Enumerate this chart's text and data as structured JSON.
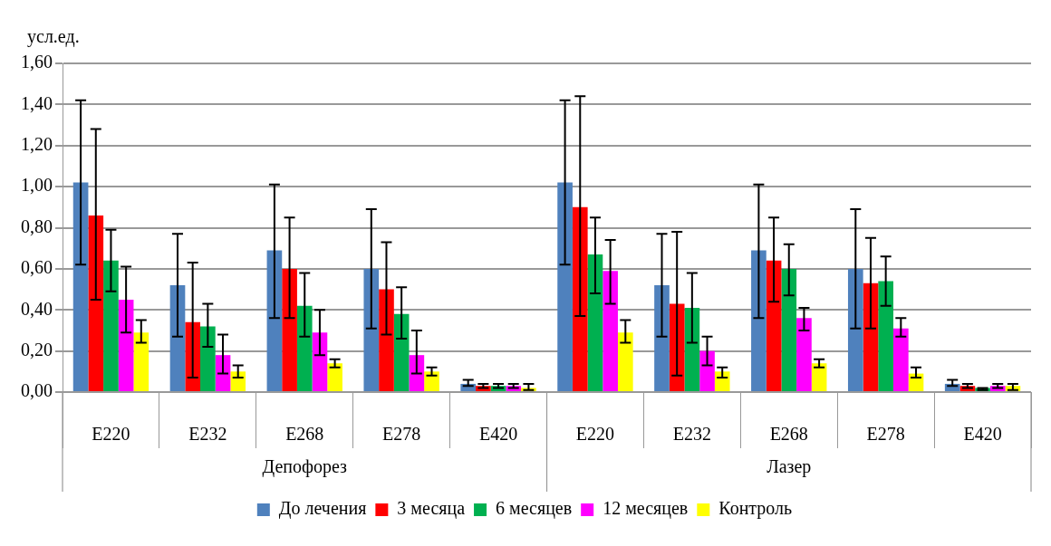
{
  "chart_data": {
    "type": "bar",
    "ylabel": "усл.ед.",
    "categories": [
      "E220",
      "E232",
      "E268",
      "E278",
      "E420",
      "E220",
      "E232",
      "E268",
      "E278",
      "E420"
    ],
    "annotations": [
      "Депофорез",
      "Лазер"
    ],
    "series": [
      {
        "name": "До лечения",
        "color": "#4f81bd",
        "values": [
          1.02,
          0.52,
          0.69,
          0.6,
          0.04,
          1.02,
          0.52,
          0.69,
          0.6,
          0.04
        ],
        "errors": [
          [
            0.62,
            1.42
          ],
          [
            0.27,
            0.77
          ],
          [
            0.36,
            1.01
          ],
          [
            0.31,
            0.89
          ],
          [
            0.03,
            0.06
          ],
          [
            0.62,
            1.42
          ],
          [
            0.27,
            0.77
          ],
          [
            0.36,
            1.01
          ],
          [
            0.31,
            0.89
          ],
          [
            0.03,
            0.06
          ]
        ]
      },
      {
        "name": "3 месяца",
        "color": "#ff0000",
        "values": [
          0.86,
          0.34,
          0.6,
          0.5,
          0.03,
          0.9,
          0.43,
          0.64,
          0.53,
          0.03
        ],
        "errors": [
          [
            0.45,
            1.28
          ],
          [
            0.07,
            0.63
          ],
          [
            0.36,
            0.85
          ],
          [
            0.28,
            0.73
          ],
          [
            0.02,
            0.04
          ],
          [
            0.37,
            1.44
          ],
          [
            0.08,
            0.78
          ],
          [
            0.44,
            0.85
          ],
          [
            0.31,
            0.75
          ],
          [
            0.02,
            0.04
          ]
        ]
      },
      {
        "name": "6 месяцев",
        "color": "#00b050",
        "values": [
          0.64,
          0.32,
          0.42,
          0.38,
          0.03,
          0.67,
          0.41,
          0.6,
          0.54,
          0.02
        ],
        "errors": [
          [
            0.49,
            0.79
          ],
          [
            0.22,
            0.43
          ],
          [
            0.27,
            0.58
          ],
          [
            0.26,
            0.51
          ],
          [
            0.02,
            0.04
          ],
          [
            0.48,
            0.85
          ],
          [
            0.24,
            0.58
          ],
          [
            0.47,
            0.72
          ],
          [
            0.42,
            0.66
          ],
          [
            0.01,
            0.02
          ]
        ]
      },
      {
        "name": "12 месяцев",
        "color": "#ff00ff",
        "values": [
          0.45,
          0.18,
          0.29,
          0.18,
          0.03,
          0.59,
          0.2,
          0.36,
          0.31,
          0.03
        ],
        "errors": [
          [
            0.29,
            0.61
          ],
          [
            0.09,
            0.28
          ],
          [
            0.18,
            0.4
          ],
          [
            0.09,
            0.3
          ],
          [
            0.02,
            0.04
          ],
          [
            0.43,
            0.74
          ],
          [
            0.13,
            0.27
          ],
          [
            0.3,
            0.41
          ],
          [
            0.27,
            0.36
          ],
          [
            0.02,
            0.04
          ]
        ]
      },
      {
        "name": "Контроль",
        "color": "#ffff00",
        "values": [
          0.29,
          0.1,
          0.14,
          0.1,
          0.02,
          0.29,
          0.1,
          0.14,
          0.09,
          0.03
        ],
        "errors": [
          [
            0.24,
            0.35
          ],
          [
            0.07,
            0.13
          ],
          [
            0.12,
            0.16
          ],
          [
            0.08,
            0.12
          ],
          [
            0.01,
            0.04
          ],
          [
            0.24,
            0.35
          ],
          [
            0.07,
            0.12
          ],
          [
            0.12,
            0.16
          ],
          [
            0.07,
            0.12
          ],
          [
            0.01,
            0.04
          ]
        ]
      }
    ],
    "ylim": [
      0,
      1.6
    ],
    "yticks": [
      {
        "value": 0,
        "label": "0,00"
      },
      {
        "value": 0.2,
        "label": "0,20"
      },
      {
        "value": 0.4,
        "label": "0,40"
      },
      {
        "value": 0.6,
        "label": "0,60"
      },
      {
        "value": 0.8,
        "label": "0,80"
      },
      {
        "value": 1,
        "label": "1,00"
      },
      {
        "value": 1.2,
        "label": "1,20"
      },
      {
        "value": 1.4,
        "label": "1,40"
      },
      {
        "value": 1.6,
        "label": "1,60"
      }
    ],
    "grid": "y",
    "legend": "bottom"
  }
}
